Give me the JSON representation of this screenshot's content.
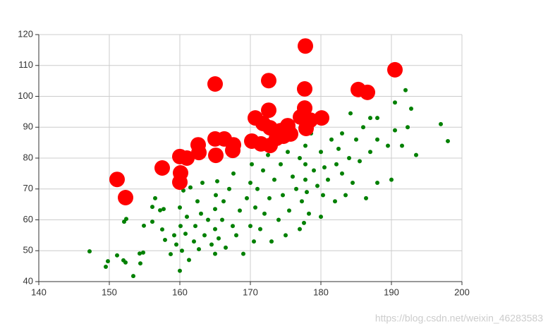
{
  "chart_data": {
    "type": "scatter",
    "xlim": [
      140,
      200
    ],
    "xticks": [
      140,
      150,
      160,
      170,
      180,
      190,
      200
    ],
    "ylim": [
      40,
      120
    ],
    "yticks": [
      40,
      50,
      60,
      70,
      80,
      90,
      100,
      110,
      120
    ],
    "grid": true,
    "watermark": "https://blog.csdn.net/weixin_46283583",
    "series": [
      {
        "color": "#008000",
        "x": [
          147.2,
          149.5,
          149.8,
          151.1,
          152,
          152.3,
          152.1,
          152.4,
          153.4,
          154.3,
          154.8,
          154.4,
          154.9,
          156.1,
          156.1,
          156.5,
          157.2,
          157.7,
          157.5,
          157.9,
          158.7,
          159.2,
          159.5,
          160,
          160,
          160.1,
          160.3,
          160.5,
          160.8,
          161,
          161.3,
          161.5,
          162,
          162.2,
          162.5,
          162.7,
          163,
          163.2,
          163.5,
          164,
          164.5,
          165,
          165,
          165,
          165.1,
          165.3,
          165.5,
          166,
          166.2,
          166.5,
          167,
          167.5,
          167.6,
          168,
          168.5,
          169,
          169.5,
          170,
          170,
          170.2,
          170.5,
          170.7,
          171,
          171.4,
          171.8,
          172,
          172.5,
          172.7,
          173,
          173.4,
          174,
          174.3,
          174.6,
          175,
          175.3,
          175.5,
          176,
          176.5,
          177,
          177,
          177.3,
          177.6,
          177.8,
          177.8,
          177.8,
          178,
          178.3,
          178.6,
          179,
          179.5,
          180,
          180,
          180.3,
          180.5,
          181,
          181.5,
          182,
          182.2,
          182.5,
          183,
          183,
          183.5,
          184,
          184.2,
          184.5,
          185,
          185.5,
          186,
          186.4,
          187,
          187,
          188,
          188,
          188,
          189.5,
          190,
          190.5,
          190.5,
          191.5,
          192,
          192.3,
          192.8,
          193.5,
          197,
          198
        ],
        "values": [
          49.8,
          44.8,
          46.6,
          48.5,
          46.9,
          46.2,
          59.4,
          60.3,
          41.8,
          49.1,
          49.4,
          45.9,
          58.1,
          64.2,
          59.4,
          67,
          63.1,
          63.5,
          56.9,
          53.5,
          48.9,
          55,
          52,
          43.5,
          64,
          58,
          50,
          69.5,
          55.5,
          61,
          47,
          70.5,
          53,
          58,
          66,
          50.5,
          62,
          72,
          55,
          60,
          52,
          49,
          57,
          63.5,
          68,
          72.5,
          54,
          60,
          66,
          51,
          70,
          58,
          75,
          55,
          63,
          49,
          67,
          58,
          72,
          78,
          53,
          64,
          70,
          57,
          76,
          62,
          81,
          67,
          53,
          73,
          60,
          78,
          68,
          55,
          82,
          63,
          74,
          70,
          57,
          80,
          66,
          59,
          73,
          78,
          84,
          69,
          62,
          88,
          76,
          71,
          61,
          82,
          68,
          77,
          73,
          86,
          66,
          78,
          83,
          75,
          88,
          68,
          80,
          94.5,
          72,
          86,
          79,
          90,
          67,
          82,
          93,
          72,
          86,
          93,
          84,
          73,
          98,
          89,
          84,
          102,
          90,
          96,
          81,
          91,
          85.5
        ]
      },
      {
        "color": "#ff0000",
        "x": [
          151.1,
          152.3,
          157.5,
          160,
          160.1,
          160,
          161,
          162.6,
          162.7,
          165,
          165,
          165.1,
          166.3,
          167.5,
          167.6,
          170.2,
          170.7,
          171.5,
          171.8,
          172.6,
          172.6,
          172.8,
          172.8,
          173.7,
          174.3,
          174.7,
          175.3,
          175.7,
          177.1,
          177.8,
          177.7,
          177.7,
          177.9,
          178.5,
          180.1,
          185.3,
          186.6,
          190.5
        ],
        "values": [
          73.1,
          67.2,
          76.8,
          80.5,
          75.2,
          72.2,
          80,
          84.3,
          81.8,
          104,
          86.2,
          80.9,
          86.2,
          82.5,
          84.3,
          85.5,
          93,
          84.6,
          91.2,
          105.1,
          95.5,
          89.8,
          84.1,
          86.4,
          88.9,
          87.1,
          90.5,
          87.8,
          93.3,
          116.3,
          102.4,
          96.2,
          89.6,
          92.3,
          93,
          102.2,
          101.3,
          108.6
        ]
      }
    ]
  }
}
